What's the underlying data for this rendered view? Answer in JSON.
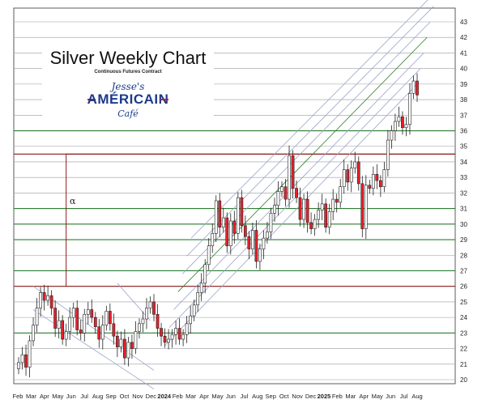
{
  "title": "Silver Weekly Chart",
  "subtitle": "Continuous Futures Contract",
  "logo": {
    "top": "Jesse's",
    "middle": "AMÉRICAIN",
    "bottom": "Café"
  },
  "annotation": "α",
  "colors": {
    "up": "#ffffff",
    "down": "#e8202a",
    "wick": "#222222",
    "support_green": "#2e7d32",
    "resistance_red": "#8b1a1a",
    "channel": "#9aa3c8",
    "grid": "#9a9a9a"
  },
  "chart_data": {
    "type": "candlestick",
    "title": "Silver Weekly Chart",
    "subtitle": "Continuous Futures Contract",
    "xlabel": "",
    "ylabel": "",
    "ylim": [
      20,
      43
    ],
    "grid": true,
    "y_ticks": [
      20,
      21,
      22,
      23,
      24,
      25,
      26,
      27,
      28,
      29,
      30,
      31,
      32,
      33,
      34,
      35,
      36,
      37,
      38,
      39,
      40,
      41,
      42,
      43
    ],
    "x_labels": [
      "Feb",
      "Mar",
      "Apr",
      "May",
      "Jun",
      "Jul",
      "Aug",
      "Sep",
      "Oct",
      "Nov",
      "Dec",
      "2024",
      "Feb",
      "Mar",
      "Apr",
      "May",
      "Jun",
      "Jul",
      "Aug",
      "Sep",
      "Oct",
      "Nov",
      "Dec",
      "2025",
      "Feb",
      "Mar",
      "Apr",
      "May",
      "Jun",
      "Jul",
      "Aug"
    ],
    "highlight_levels": [
      {
        "value": 36.0,
        "color": "green"
      },
      {
        "value": 34.5,
        "color": "red"
      },
      {
        "value": 31.0,
        "color": "green"
      },
      {
        "value": 30.0,
        "color": "green"
      },
      {
        "value": 29.0,
        "color": "green"
      },
      {
        "value": 27.0,
        "color": "green"
      },
      {
        "value": 26.0,
        "color": "red"
      },
      {
        "value": 23.0,
        "color": "green"
      }
    ],
    "weekly_close": [
      21.1,
      21.6,
      20.8,
      22.5,
      23.5,
      24.6,
      25.6,
      25.1,
      25.4,
      24.6,
      23.3,
      23.8,
      22.6,
      23.1,
      24.0,
      24.6,
      23.2,
      23.0,
      24.2,
      24.5,
      24.0,
      23.4,
      22.6,
      23.5,
      24.4,
      23.6,
      22.8,
      22.1,
      22.6,
      21.4,
      22.4,
      22.0,
      23.1,
      23.6,
      23.9,
      24.6,
      25.0,
      24.2,
      23.3,
      22.8,
      22.4,
      22.6,
      22.9,
      23.3,
      22.6,
      22.9,
      23.6,
      24.1,
      24.8,
      25.6,
      26.2,
      27.4,
      28.6,
      29.4,
      31.5,
      29.8,
      30.4,
      28.6,
      30.2,
      29.4,
      31.7,
      29.9,
      29.2,
      28.4,
      29.6,
      27.6,
      28.4,
      29.1,
      29.5,
      30.7,
      31.2,
      32.1,
      32.4,
      31.6,
      34.4,
      32.3,
      31.7,
      30.3,
      31.6,
      30.1,
      29.7,
      30.3,
      30.9,
      31.3,
      29.8,
      30.8,
      31.6,
      31.4,
      32.4,
      33.5,
      32.7,
      33.6,
      34.0,
      32.6,
      29.7,
      32.5,
      32.3,
      33.2,
      32.8,
      32.4,
      33.5,
      35.4,
      36.0,
      36.6,
      36.9,
      36.2,
      36.4,
      38.4,
      39.2,
      38.3
    ]
  }
}
